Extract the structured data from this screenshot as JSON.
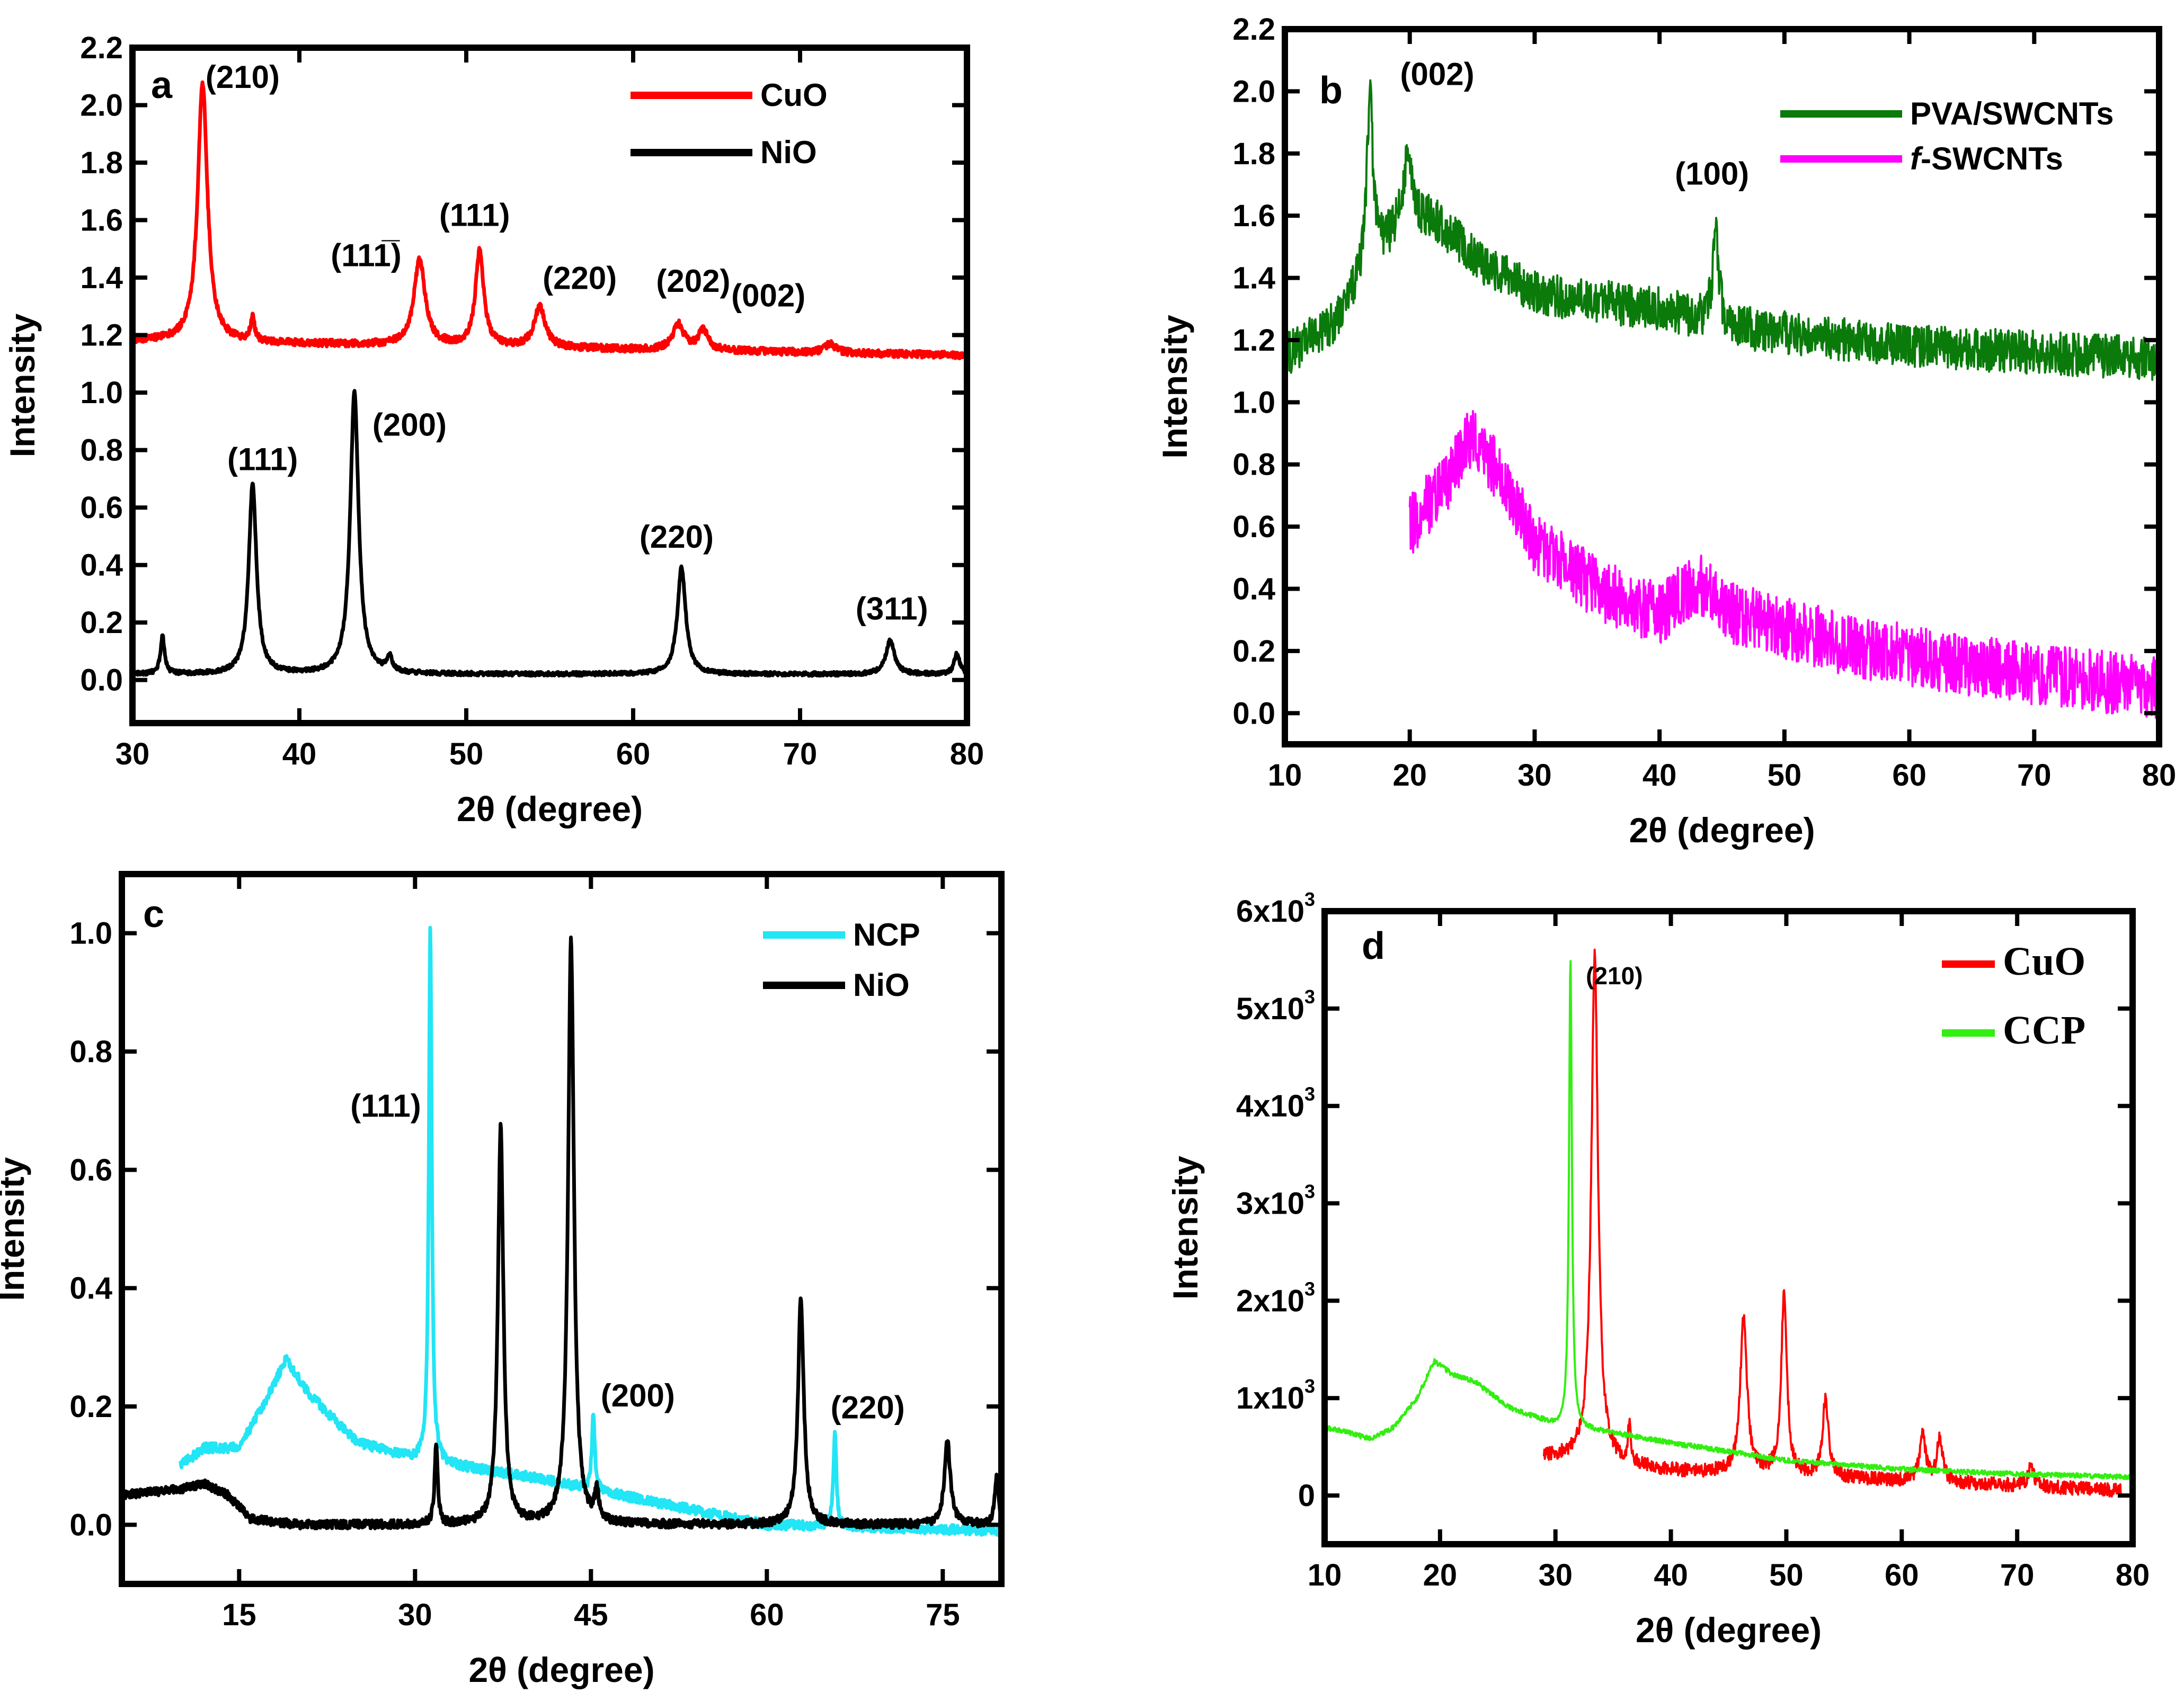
{
  "chart_data": [
    {
      "panel": "a",
      "type": "line",
      "xlabel": "2θ (degree)",
      "ylabel": "Intensity",
      "xlim": [
        30,
        80
      ],
      "ylim": [
        -0.15,
        2.2
      ],
      "xticks": [
        30,
        40,
        50,
        60,
        70,
        80
      ],
      "yticks": [
        0.0,
        0.2,
        0.4,
        0.6,
        0.8,
        1.0,
        1.2,
        1.4,
        1.6,
        1.8,
        2.0,
        2.2
      ],
      "ytick_format": "fixed1",
      "legend_position": "top-right",
      "series": [
        {
          "name": "CuO",
          "color": "#ff0000",
          "noise": 0.012,
          "baseline": [
            [
              30,
              1.18
            ],
            [
              50,
              1.16
            ],
            [
              80,
              1.13
            ]
          ],
          "peaks": [
            [
              34.2,
              0.9,
              0.35
            ],
            [
              37.2,
              0.08,
              0.15
            ],
            [
              47.2,
              0.3,
              0.4
            ],
            [
              50.8,
              0.33,
              0.3
            ],
            [
              54.4,
              0.14,
              0.4
            ],
            [
              62.7,
              0.09,
              0.4
            ],
            [
              64.2,
              0.07,
              0.35
            ],
            [
              71.8,
              0.03,
              0.4
            ]
          ]
        },
        {
          "name": "NiO",
          "color": "#000000",
          "noise": 0.007,
          "baseline": [
            [
              30,
              0.02
            ],
            [
              80,
              0.02
            ]
          ],
          "peaks": [
            [
              31.8,
              0.13,
              0.15
            ],
            [
              37.2,
              0.66,
              0.28
            ],
            [
              43.3,
              0.98,
              0.3
            ],
            [
              45.4,
              0.05,
              0.2
            ],
            [
              62.9,
              0.37,
              0.3
            ],
            [
              75.4,
              0.12,
              0.3
            ],
            [
              79.4,
              0.07,
              0.2
            ]
          ]
        }
      ],
      "annotations": [
        {
          "text": "(210)",
          "x": 36.6,
          "y": 2.06
        },
        {
          "text": "(111̅)",
          "x": 44.0,
          "y": 1.44
        },
        {
          "text": "(111)",
          "x": 50.5,
          "y": 1.58
        },
        {
          "text": "(220)",
          "x": 56.8,
          "y": 1.36
        },
        {
          "text": "(202)",
          "x": 63.6,
          "y": 1.35
        },
        {
          "text": "(002)",
          "x": 68.1,
          "y": 1.3
        },
        {
          "text": "(111)",
          "x": 37.8,
          "y": 0.73
        },
        {
          "text": "(200)",
          "x": 46.6,
          "y": 0.85
        },
        {
          "text": "(220)",
          "x": 62.6,
          "y": 0.46
        },
        {
          "text": "(311)",
          "x": 75.5,
          "y": 0.21
        }
      ]
    },
    {
      "panel": "b",
      "type": "line",
      "xlabel": "2θ (degree)",
      "ylabel": "Intensity",
      "xlim": [
        10,
        80
      ],
      "ylim": [
        -0.1,
        2.2
      ],
      "xticks": [
        10,
        20,
        30,
        40,
        50,
        60,
        70,
        80
      ],
      "yticks": [
        0.0,
        0.2,
        0.4,
        0.6,
        0.8,
        1.0,
        1.2,
        1.4,
        1.6,
        1.8,
        2.0,
        2.2
      ],
      "ytick_format": "fixed1",
      "legend_position": "top-right",
      "series": [
        {
          "name": "PVA/SWCNTs",
          "color": "#0a7a0a",
          "noise": 0.07,
          "baseline": [
            [
              10,
              1.15
            ],
            [
              14,
              1.25
            ],
            [
              17,
              1.45
            ],
            [
              20,
              1.6
            ],
            [
              22,
              1.58
            ],
            [
              26,
              1.44
            ],
            [
              30,
              1.35
            ],
            [
              40,
              1.3
            ],
            [
              46,
              1.24
            ],
            [
              55,
              1.2
            ],
            [
              65,
              1.17
            ],
            [
              80,
              1.14
            ]
          ],
          "peaks": [
            [
              16.8,
              0.55,
              0.3
            ],
            [
              19.8,
              0.2,
              0.4
            ],
            [
              44.5,
              0.28,
              0.3
            ]
          ]
        },
        {
          "name": "f-SWCNTs",
          "color": "#ff00ff",
          "noise": 0.1,
          "xrange": [
            20,
            80
          ],
          "baseline": [
            [
              20,
              0.6
            ],
            [
              23,
              0.75
            ],
            [
              25,
              0.9
            ],
            [
              27,
              0.78
            ],
            [
              30,
              0.55
            ],
            [
              35,
              0.4
            ],
            [
              40,
              0.32
            ],
            [
              43,
              0.42
            ],
            [
              46,
              0.32
            ],
            [
              55,
              0.22
            ],
            [
              65,
              0.15
            ],
            [
              80,
              0.08
            ]
          ],
          "peaks": []
        }
      ],
      "annotations": [
        {
          "text": "(002)",
          "x": 22.2,
          "y": 2.02
        },
        {
          "text": "(100)",
          "x": 44.2,
          "y": 1.7
        }
      ]
    },
    {
      "panel": "c",
      "type": "line",
      "xlabel": "2θ (degree)",
      "ylabel": "Intensity",
      "xlim": [
        5,
        80
      ],
      "ylim": [
        -0.1,
        1.1
      ],
      "xticks": [
        15,
        30,
        45,
        60,
        75
      ],
      "yticks": [
        0.0,
        0.2,
        0.4,
        0.6,
        0.8,
        1.0
      ],
      "ytick_format": "fixed1",
      "legend_position": "top-right",
      "series": [
        {
          "name": "NCP",
          "color": "#22e5f5",
          "noise": 0.008,
          "xrange": [
            10,
            80
          ],
          "baseline": [
            [
              10,
              0.1
            ],
            [
              12,
              0.13
            ],
            [
              15,
              0.13
            ],
            [
              17,
              0.2
            ],
            [
              19,
              0.28
            ],
            [
              21,
              0.22
            ],
            [
              25,
              0.14
            ],
            [
              30,
              0.11
            ],
            [
              40,
              0.08
            ],
            [
              50,
              0.04
            ],
            [
              55,
              0.02
            ],
            [
              60,
              0.0
            ],
            [
              80,
              -0.01
            ]
          ],
          "peaks": [
            [
              31.3,
              0.9,
              0.15
            ],
            [
              45.2,
              0.13,
              0.15
            ],
            [
              65.8,
              0.16,
              0.15
            ]
          ]
        },
        {
          "name": "NiO",
          "color": "#000000",
          "noise": 0.007,
          "baseline": [
            [
              5,
              0.05
            ],
            [
              10,
              0.06
            ],
            [
              12,
              0.07
            ],
            [
              14,
              0.05
            ],
            [
              16,
              0.01
            ],
            [
              20,
              0.0
            ],
            [
              80,
              0.0
            ]
          ],
          "peaks": [
            [
              31.8,
              0.14,
              0.15
            ],
            [
              37.3,
              0.67,
              0.28
            ],
            [
              43.3,
              0.99,
              0.3
            ],
            [
              45.5,
              0.05,
              0.2
            ],
            [
              62.9,
              0.38,
              0.3
            ],
            [
              75.4,
              0.14,
              0.3
            ],
            [
              79.6,
              0.08,
              0.2
            ]
          ]
        }
      ],
      "annotations": [
        {
          "text": "(111)",
          "x": 27.5,
          "y": 0.69
        },
        {
          "text": "(200)",
          "x": 49.0,
          "y": 0.2
        },
        {
          "text": "(220)",
          "x": 68.6,
          "y": 0.18
        }
      ]
    },
    {
      "panel": "d",
      "type": "line",
      "xlabel": "2θ (degree)",
      "ylabel": "Intensity",
      "xlim": [
        10,
        80
      ],
      "ylim": [
        -500,
        6000
      ],
      "xticks": [
        10,
        20,
        30,
        40,
        50,
        60,
        70,
        80
      ],
      "yticks": [
        0,
        1000,
        2000,
        3000,
        4000,
        5000,
        6000
      ],
      "ytick_labels": [
        "0",
        "1x10",
        "2x10",
        "3x10",
        "4x10",
        "5x10",
        "6x10"
      ],
      "ytick_exponent": "3",
      "legend_position": "top-right",
      "series": [
        {
          "name": "CuO",
          "color": "#ff0000",
          "noise": 70,
          "xrange": [
            29,
            79
          ],
          "baseline": [
            [
              29,
              400
            ],
            [
              33,
              350
            ],
            [
              40,
              250
            ],
            [
              50,
              200
            ],
            [
              60,
              150
            ],
            [
              70,
              100
            ],
            [
              79,
              50
            ]
          ],
          "peaks": [
            [
              33.4,
              5200,
              0.35
            ],
            [
              36.4,
              380,
              0.15
            ],
            [
              46.3,
              1600,
              0.35
            ],
            [
              49.8,
              1850,
              0.3
            ],
            [
              53.4,
              800,
              0.3
            ],
            [
              61.8,
              500,
              0.3
            ],
            [
              63.3,
              450,
              0.3
            ],
            [
              71.2,
              200,
              0.3
            ]
          ]
        },
        {
          "name": "CCP",
          "color": "#33ee11",
          "noise": 25,
          "baseline": [
            [
              10,
              700
            ],
            [
              12,
              650
            ],
            [
              14,
              580
            ],
            [
              16,
              700
            ],
            [
              18,
              1000
            ],
            [
              19.5,
              1380
            ],
            [
              21,
              1250
            ],
            [
              23,
              1170
            ],
            [
              26,
              900
            ],
            [
              30,
              720
            ],
            [
              35,
              640
            ],
            [
              40,
              540
            ],
            [
              50,
              360
            ],
            [
              60,
              270
            ],
            [
              70,
              220
            ],
            [
              80,
              190
            ]
          ],
          "peaks": [
            [
              31.3,
              4800,
              0.15
            ]
          ]
        }
      ],
      "annotations": [
        {
          "text": "(210)",
          "x": 35.1,
          "y": 5250
        }
      ]
    }
  ]
}
